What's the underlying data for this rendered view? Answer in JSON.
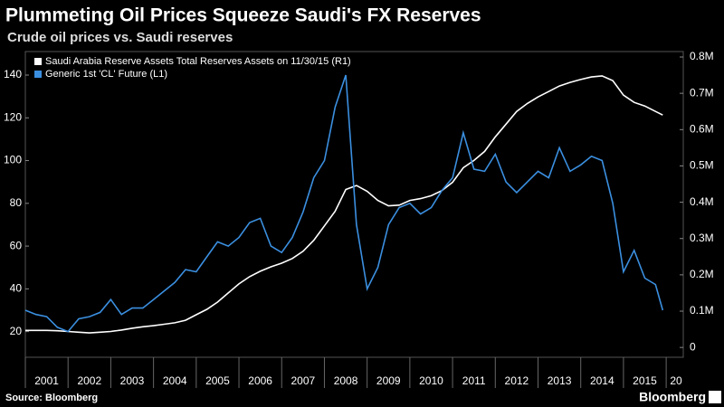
{
  "chart_data": {
    "type": "line",
    "title": "Plummeting Oil Prices Squeeze Saudi's FX Reserves",
    "subtitle": "Crude oil prices vs. Saudi reserves",
    "source": "Source: Bloomberg",
    "brand": "Bloomberg",
    "x": [
      2001.0,
      2001.25,
      2001.5,
      2001.75,
      2002.0,
      2002.25,
      2002.5,
      2002.75,
      2003.0,
      2003.25,
      2003.5,
      2003.75,
      2004.0,
      2004.25,
      2004.5,
      2004.75,
      2005.0,
      2005.25,
      2005.5,
      2005.75,
      2006.0,
      2006.25,
      2006.5,
      2006.75,
      2007.0,
      2007.25,
      2007.5,
      2007.75,
      2008.0,
      2008.25,
      2008.5,
      2008.75,
      2009.0,
      2009.25,
      2009.5,
      2009.75,
      2010.0,
      2010.25,
      2010.5,
      2010.75,
      2011.0,
      2011.25,
      2011.5,
      2011.75,
      2012.0,
      2012.25,
      2012.5,
      2012.75,
      2013.0,
      2013.25,
      2013.5,
      2013.75,
      2014.0,
      2014.25,
      2014.5,
      2014.75,
      2015.0,
      2015.25,
      2015.5,
      2015.75,
      2015.92
    ],
    "series": [
      {
        "name": "Saudi Arabia Reserve Assets Total Reserves Assets  on 11/30/15 (R1)",
        "color": "#ffffff",
        "axis": "y2",
        "values": [
          47000,
          47000,
          47000,
          46000,
          44000,
          42000,
          40000,
          42000,
          44000,
          48000,
          53000,
          57000,
          60000,
          64000,
          68000,
          75000,
          90000,
          105000,
          125000,
          150000,
          175000,
          195000,
          210000,
          222000,
          232000,
          245000,
          265000,
          295000,
          335000,
          375000,
          435000,
          446000,
          430000,
          405000,
          390000,
          392000,
          405000,
          410000,
          418000,
          432000,
          455000,
          495000,
          515000,
          540000,
          580000,
          615000,
          650000,
          672000,
          690000,
          705000,
          720000,
          730000,
          738000,
          745000,
          748000,
          735000,
          695000,
          675000,
          665000,
          650000,
          640000
        ]
      },
      {
        "name": "Generic 1st 'CL' Future  (L1)",
        "color": "#3b8fe0",
        "values": [
          30,
          28,
          27,
          22,
          20,
          26,
          27,
          29,
          35,
          28,
          31,
          31,
          35,
          39,
          43,
          49,
          48,
          55,
          62,
          60,
          64,
          71,
          73,
          60,
          57,
          64,
          76,
          92,
          100,
          125,
          140,
          70,
          40,
          50,
          70,
          78,
          80,
          75,
          78,
          86,
          92,
          113,
          96,
          95,
          103,
          90,
          85,
          90,
          95,
          92,
          106,
          95,
          98,
          102,
          100,
          80,
          48,
          58,
          45,
          42,
          30
        ]
      }
    ],
    "xlim": [
      2001,
      2016.4
    ],
    "xticks": [
      2001,
      2002,
      2003,
      2004,
      2005,
      2006,
      2007,
      2008,
      2009,
      2010,
      2011,
      2012,
      2013,
      2014,
      2015,
      {
        "value": 2016,
        "label": "20"
      }
    ],
    "ylim": [
      8,
      151
    ],
    "yticks": [
      20,
      40,
      60,
      80,
      100,
      120,
      140
    ],
    "y2lim": [
      -27000,
      815000
    ],
    "y2ticks": [
      0,
      {
        "value": 100000,
        "label": "0.1M"
      },
      {
        "value": 200000,
        "label": "0.2M"
      },
      {
        "value": 300000,
        "label": "0.3M"
      },
      {
        "value": 400000,
        "label": "0.4M"
      },
      {
        "value": 500000,
        "label": "0.5M"
      },
      {
        "value": 600000,
        "label": "0.6M"
      },
      {
        "value": 700000,
        "label": "0.7M"
      },
      {
        "value": 800000,
        "label": "0.8M"
      }
    ],
    "grid": false
  }
}
